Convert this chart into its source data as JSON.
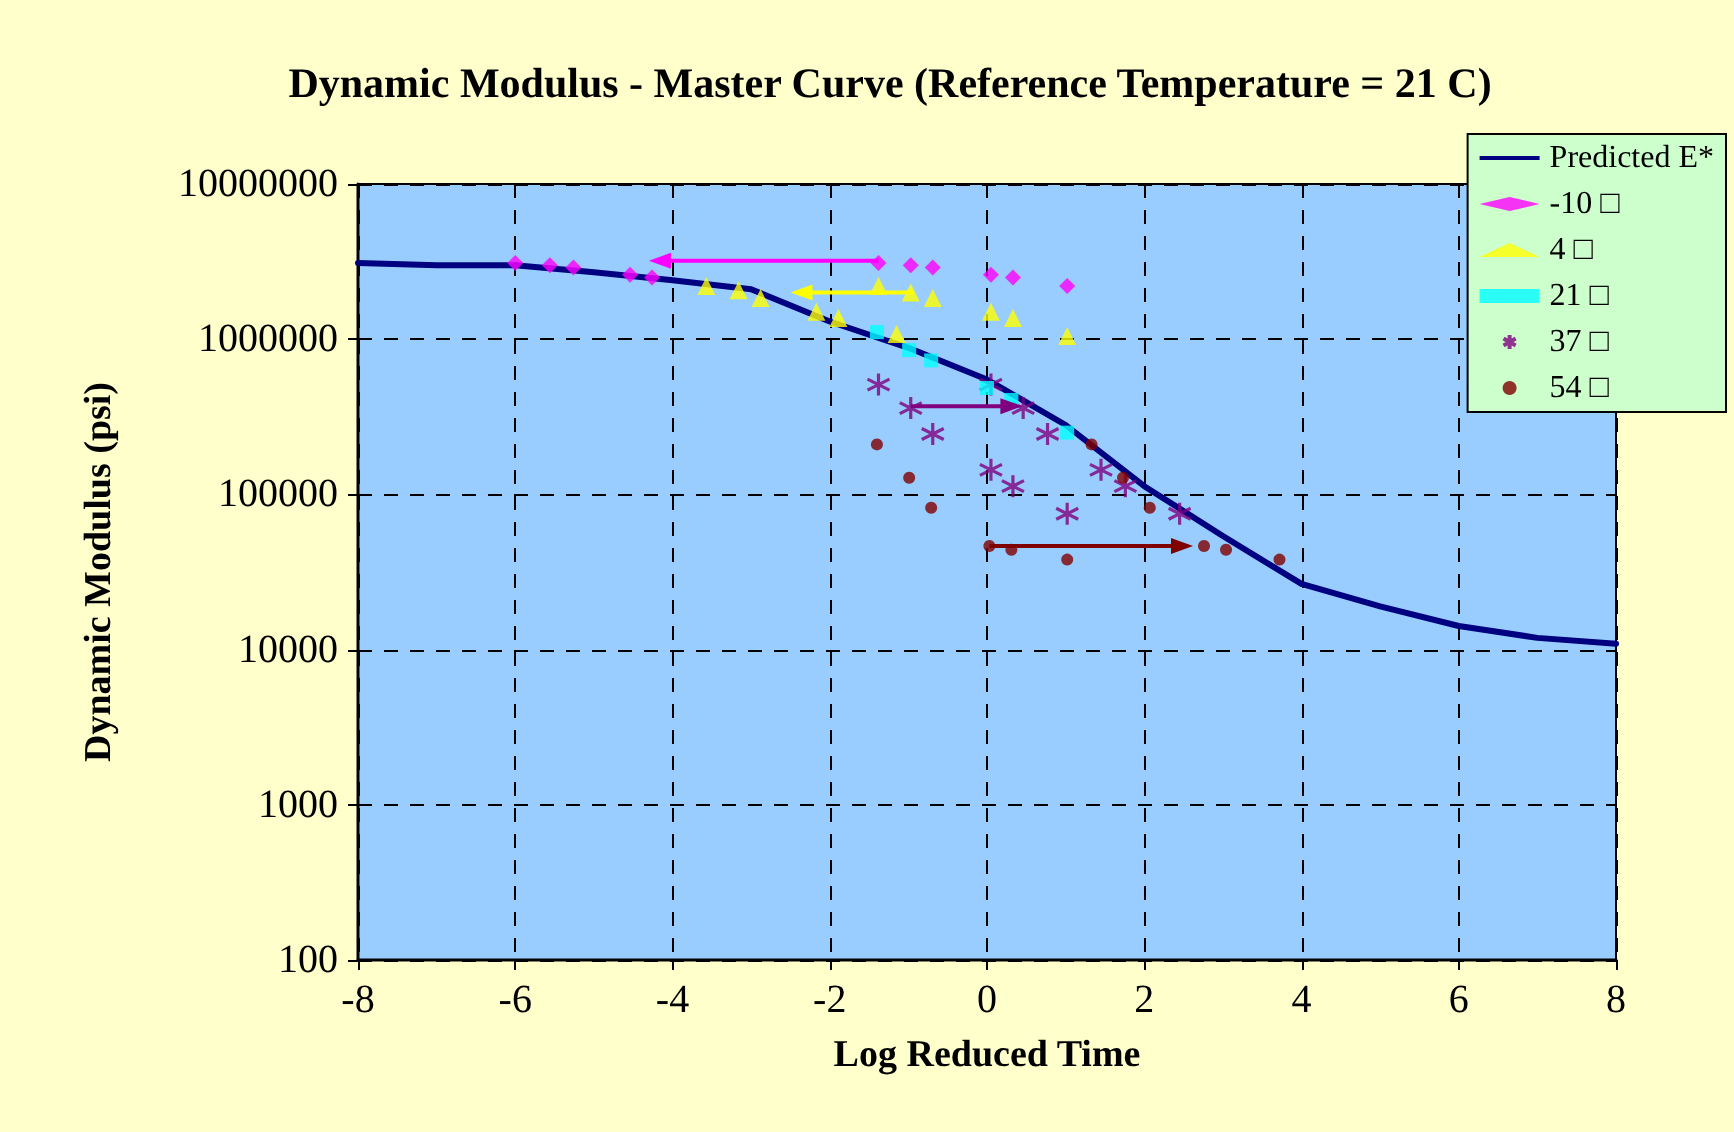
{
  "chart_data": {
    "type": "scatter",
    "title": "Dynamic Modulus - Master Curve (Reference Temperature = 21 C)",
    "xlabel": "Log Reduced Time",
    "ylabel": "Dynamic Modulus (psi)",
    "xlim": [
      -8,
      8
    ],
    "xticks": [
      -8,
      -6,
      -4,
      -2,
      0,
      2,
      4,
      6,
      8
    ],
    "ylim": [
      100,
      10000000
    ],
    "yticks": [
      100,
      1000,
      10000,
      100000,
      1000000,
      10000000
    ],
    "log": "y",
    "grid": true,
    "legend": "top right",
    "series": [
      {
        "name": "Predicted E*",
        "type": "line",
        "marker": "none",
        "line_style": "solid",
        "color": "#000080",
        "x": [
          -8,
          -7,
          -6,
          -5,
          -4,
          -3,
          -2,
          -1,
          0,
          1,
          2,
          3,
          4,
          5,
          6,
          7,
          8
        ],
        "values": [
          3100000,
          3000000,
          3000000,
          2700000,
          2400000,
          2100000,
          1300000,
          880000,
          550000,
          280000,
          113000,
          54000,
          26500,
          19000,
          14200,
          11900,
          10900
        ]
      },
      {
        "name": "-10 □",
        "marker": "diamond",
        "color": "#ff00ff",
        "x": [
          -6.0,
          -5.56,
          -5.26,
          -4.54,
          -4.26,
          -1.38,
          -0.97,
          -0.69,
          0.05,
          0.33,
          1.02
        ],
        "values": [
          3100000,
          3000000,
          2900000,
          2600000,
          2500000,
          3100000,
          3000000,
          2900000,
          2600000,
          2500000,
          2200000
        ]
      },
      {
        "name": "4 □",
        "marker": "triangle",
        "color": "#ffff00",
        "x": [
          -3.57,
          -3.16,
          -2.88,
          -2.17,
          -1.89,
          -1.38,
          -1.15,
          -0.97,
          -0.69,
          0.05,
          0.33,
          1.02
        ],
        "values": [
          2200000,
          2070000,
          1840000,
          1500000,
          1370000,
          2200000,
          1080000,
          2000000,
          1840000,
          1500000,
          1370000,
          1050000
        ]
      },
      {
        "name": "21 □",
        "marker": "square",
        "color": "#00ffff",
        "x": [
          -1.4,
          -0.99,
          -0.71,
          0,
          0.31,
          1.02
        ],
        "values": [
          1110000,
          850000,
          730000,
          485000,
          406000,
          250000
        ]
      },
      {
        "name": "37 □",
        "marker": "cross",
        "color": "#800080",
        "x": [
          -1.38,
          -0.97,
          -0.69,
          0.05,
          0.46,
          0.77,
          0.05,
          0.33,
          1.02,
          1.45,
          1.76,
          2.45
        ],
        "values": [
          510000,
          360000,
          245000,
          510000,
          360000,
          245000,
          144000,
          113000,
          75000,
          144000,
          113000,
          75000
        ]
      },
      {
        "name": "54 □",
        "marker": "circle",
        "color": "#800000",
        "x": [
          -1.4,
          -0.99,
          -0.71,
          1.33,
          1.73,
          2.07,
          0.03,
          0.31,
          1.02,
          2.76,
          3.04,
          3.72
        ],
        "values": [
          210000,
          128000,
          82000,
          210000,
          128000,
          82000,
          46500,
          44000,
          38000,
          46500,
          44000,
          38000
        ]
      }
    ]
  }
}
